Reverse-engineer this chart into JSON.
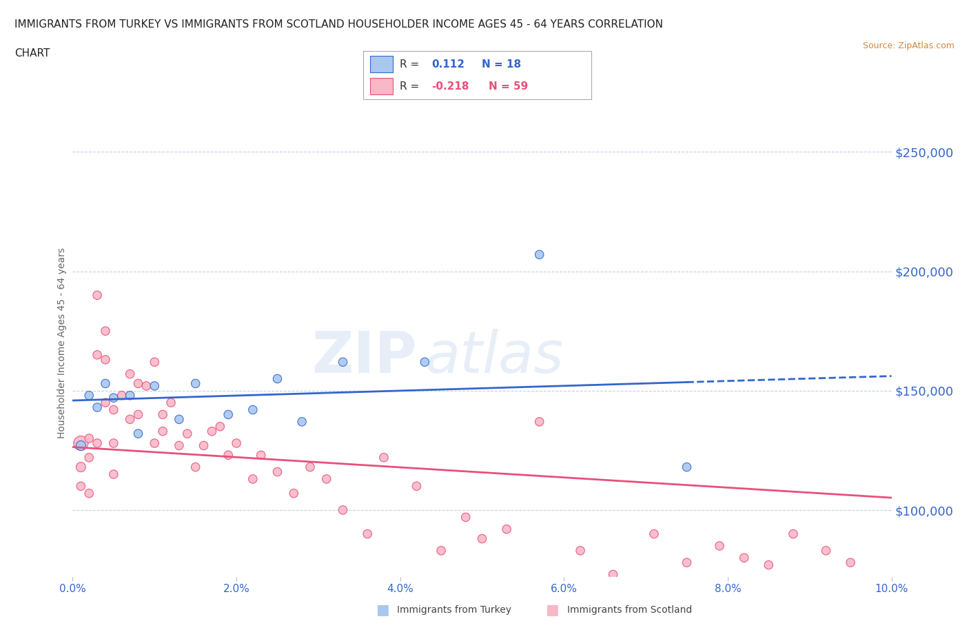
{
  "title_line1": "IMMIGRANTS FROM TURKEY VS IMMIGRANTS FROM SCOTLAND HOUSEHOLDER INCOME AGES 45 - 64 YEARS CORRELATION",
  "title_line2": "CHART",
  "source_text": "Source: ZipAtlas.com",
  "ylabel": "Householder Income Ages 45 - 64 years",
  "xlim": [
    0.0,
    0.1
  ],
  "ylim": [
    72000,
    268000
  ],
  "yticks": [
    100000,
    150000,
    200000,
    250000
  ],
  "ytick_labels": [
    "$100,000",
    "$150,000",
    "$200,000",
    "$250,000"
  ],
  "xticks": [
    0.0,
    0.02,
    0.04,
    0.06,
    0.08,
    0.1
  ],
  "xtick_labels": [
    "0.0%",
    "2.0%",
    "4.0%",
    "6.0%",
    "8.0%",
    "10.0%"
  ],
  "turkey_color": "#a8c8f0",
  "scotland_color": "#f8b8c8",
  "trend_turkey_color": "#3366cc",
  "trend_scotland_color": "#e8507a",
  "turkey_R": 0.112,
  "turkey_N": 18,
  "scotland_R": -0.218,
  "scotland_N": 59,
  "watermark_zip": "ZIP",
  "watermark_atlas": "atlas",
  "bg_color": "#ffffff",
  "grid_color": "#c0d0e8",
  "tick_label_color": "#3366cc",
  "ylabel_color": "#666666",
  "turkey_x": [
    0.001,
    0.002,
    0.003,
    0.004,
    0.005,
    0.007,
    0.008,
    0.01,
    0.013,
    0.015,
    0.019,
    0.022,
    0.025,
    0.028,
    0.033,
    0.043,
    0.057,
    0.075
  ],
  "turkey_y": [
    127000,
    148000,
    143000,
    153000,
    147000,
    148000,
    132000,
    152000,
    138000,
    153000,
    140000,
    142000,
    155000,
    137000,
    162000,
    162000,
    207000,
    118000
  ],
  "turkey_sizes": [
    100,
    80,
    80,
    80,
    80,
    80,
    80,
    80,
    80,
    80,
    80,
    80,
    80,
    80,
    80,
    80,
    80,
    80
  ],
  "scotland_x": [
    0.001,
    0.001,
    0.001,
    0.002,
    0.002,
    0.002,
    0.003,
    0.003,
    0.003,
    0.004,
    0.004,
    0.004,
    0.005,
    0.005,
    0.005,
    0.006,
    0.007,
    0.007,
    0.008,
    0.008,
    0.009,
    0.01,
    0.01,
    0.011,
    0.011,
    0.012,
    0.013,
    0.014,
    0.015,
    0.016,
    0.017,
    0.018,
    0.019,
    0.02,
    0.022,
    0.023,
    0.025,
    0.027,
    0.029,
    0.031,
    0.033,
    0.036,
    0.038,
    0.042,
    0.045,
    0.048,
    0.05,
    0.053,
    0.057,
    0.062,
    0.066,
    0.071,
    0.075,
    0.079,
    0.082,
    0.085,
    0.088,
    0.092,
    0.095
  ],
  "scotland_y": [
    128000,
    118000,
    110000,
    122000,
    130000,
    107000,
    190000,
    165000,
    128000,
    175000,
    163000,
    145000,
    142000,
    128000,
    115000,
    148000,
    157000,
    138000,
    153000,
    140000,
    152000,
    128000,
    162000,
    140000,
    133000,
    145000,
    127000,
    132000,
    118000,
    127000,
    133000,
    135000,
    123000,
    128000,
    113000,
    123000,
    116000,
    107000,
    118000,
    113000,
    100000,
    90000,
    122000,
    110000,
    83000,
    97000,
    88000,
    92000,
    137000,
    83000,
    73000,
    90000,
    78000,
    85000,
    80000,
    77000,
    90000,
    83000,
    78000
  ],
  "scotland_sizes": [
    230,
    100,
    80,
    80,
    80,
    80,
    80,
    80,
    80,
    80,
    80,
    80,
    80,
    80,
    80,
    80,
    80,
    80,
    80,
    80,
    80,
    80,
    80,
    80,
    80,
    80,
    80,
    80,
    80,
    80,
    80,
    80,
    80,
    80,
    80,
    80,
    80,
    80,
    80,
    80,
    80,
    80,
    80,
    80,
    80,
    80,
    80,
    80,
    80,
    80,
    80,
    80,
    80,
    80,
    80,
    80,
    80,
    80,
    80
  ]
}
